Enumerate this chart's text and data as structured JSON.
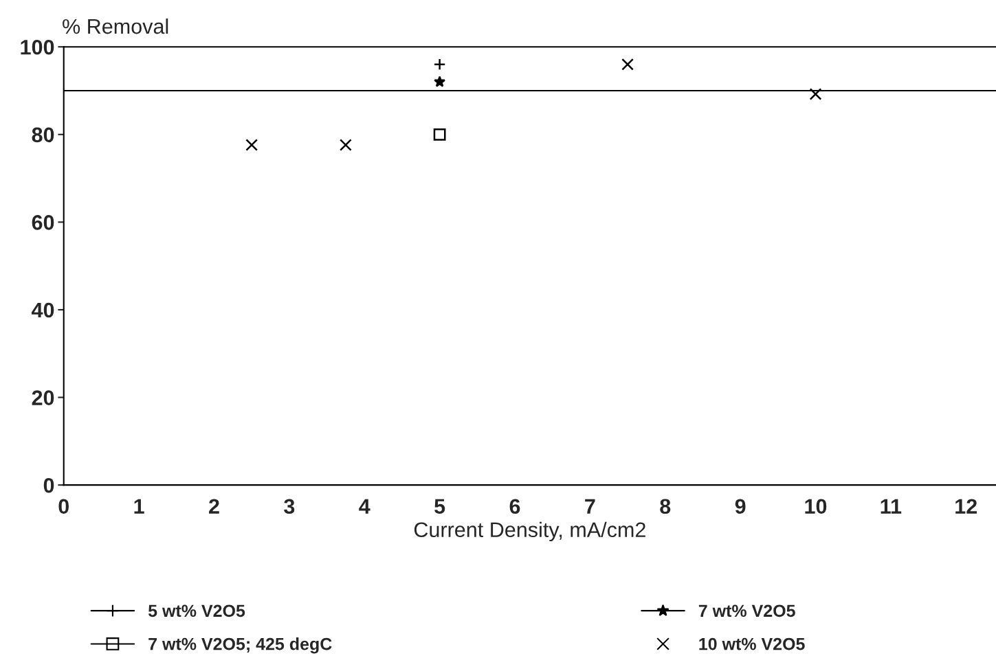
{
  "chart_data": {
    "type": "scatter",
    "xlabel": "Current Density, mA/cm2",
    "ylabel": "% Removal",
    "xlim": [
      0,
      12.4
    ],
    "ylim": [
      0,
      100
    ],
    "xticks": [
      0,
      1,
      2,
      3,
      4,
      5,
      6,
      7,
      8,
      9,
      10,
      11,
      12
    ],
    "yticks": [
      0,
      20,
      40,
      60,
      80,
      100
    ],
    "grid": false,
    "legend": "bottom",
    "series": [
      {
        "name": "5 wt% V2O5",
        "color": "#000000",
        "marker": "cross",
        "line_style": "solid",
        "x": [
          5
        ],
        "values": [
          96
        ]
      },
      {
        "name": "7 wt% V2O5",
        "color": "#000000",
        "marker": "star",
        "line_style": "solid",
        "x": [
          5
        ],
        "values": [
          92
        ]
      },
      {
        "name": "7 wt% V2O5; 425 degC",
        "color": "#000000",
        "marker": "square",
        "line_style": "solid",
        "x": [
          5
        ],
        "values": [
          80
        ]
      },
      {
        "name": "10 wt% V2O5",
        "color": "#000000",
        "marker": "x",
        "x": [
          2.5,
          3.75,
          7.5,
          10
        ],
        "values": [
          77.6,
          77.6,
          96,
          89.2
        ]
      }
    ],
    "ref_lines": [
      {
        "axis": "y",
        "value": 90,
        "color": "#000000"
      }
    ]
  }
}
